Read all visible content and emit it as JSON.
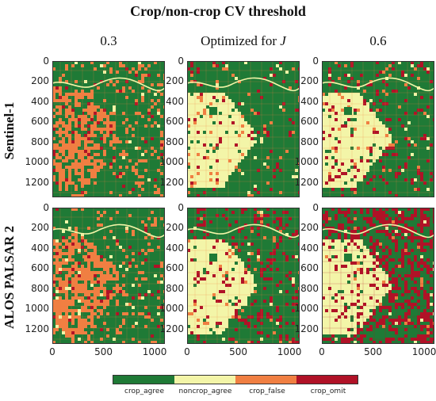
{
  "title": "Crop/non-crop CV threshold",
  "columns": [
    {
      "prefix": "0.3",
      "var": ""
    },
    {
      "prefix": "Optimized for ",
      "var": "J"
    },
    {
      "prefix": "0.6",
      "var": ""
    }
  ],
  "rows": [
    "Sentinel-1",
    "ALOS PALSAR 2"
  ],
  "y_ticks": [
    "0",
    "200",
    "400",
    "600",
    "800",
    "1000",
    "1200"
  ],
  "x_ticks": [
    "0",
    "500",
    "1000"
  ],
  "legend": [
    {
      "label": "crop_agree",
      "color": "#1f7a36"
    },
    {
      "label": "noncrop_agree",
      "color": "#f3f5a8"
    },
    {
      "label": "crop_false",
      "color": "#f07f42"
    },
    {
      "label": "crop_omit",
      "color": "#b01227"
    }
  ]
}
